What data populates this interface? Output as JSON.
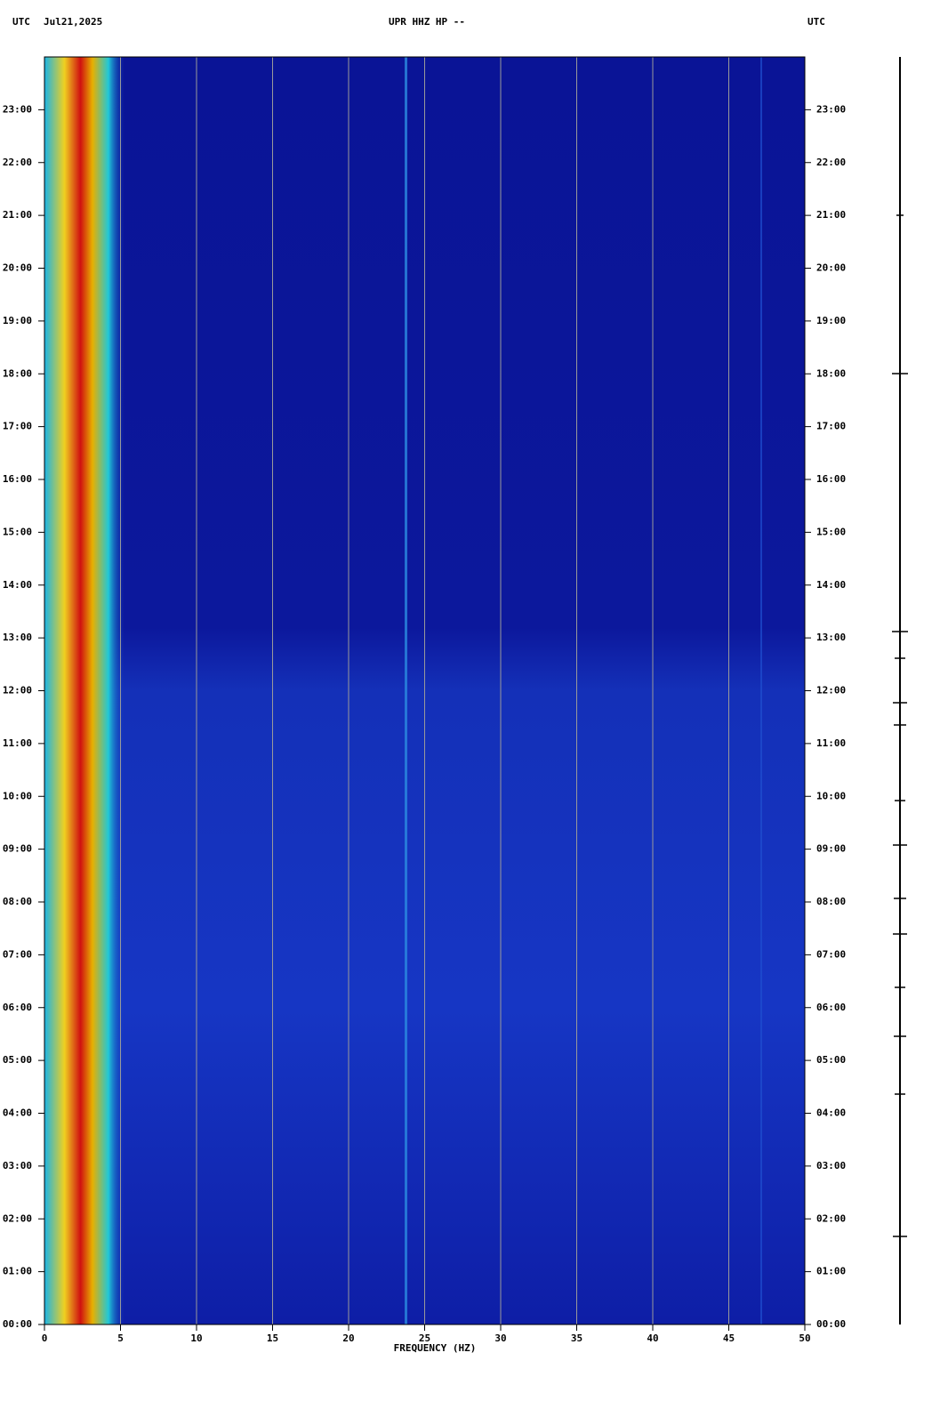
{
  "chart_data": {
    "type": "spectrogram",
    "title": "UPR HHZ HP --",
    "date": "Jul21,2025",
    "left_timezone": "UTC",
    "right_timezone": "UTC",
    "xlabel": "FREQUENCY (HZ)",
    "xlim": [
      0,
      50
    ],
    "xticks": [
      0,
      5,
      10,
      15,
      20,
      25,
      30,
      35,
      40,
      45,
      50
    ],
    "ylim": [
      0,
      24
    ],
    "yticks": [
      {
        "value": 0,
        "label": "00:00"
      },
      {
        "value": 1,
        "label": "01:00"
      },
      {
        "value": 2,
        "label": "02:00"
      },
      {
        "value": 3,
        "label": "03:00"
      },
      {
        "value": 4,
        "label": "04:00"
      },
      {
        "value": 5,
        "label": "05:00"
      },
      {
        "value": 6,
        "label": "06:00"
      },
      {
        "value": 7,
        "label": "07:00"
      },
      {
        "value": 8,
        "label": "08:00"
      },
      {
        "value": 9,
        "label": "09:00"
      },
      {
        "value": 10,
        "label": "10:00"
      },
      {
        "value": 11,
        "label": "11:00"
      },
      {
        "value": 12,
        "label": "12:00"
      },
      {
        "value": 13,
        "label": "13:00"
      },
      {
        "value": 14,
        "label": "14:00"
      },
      {
        "value": 15,
        "label": "15:00"
      },
      {
        "value": 16,
        "label": "16:00"
      },
      {
        "value": 17,
        "label": "17:00"
      },
      {
        "value": 18,
        "label": "18:00"
      },
      {
        "value": 19,
        "label": "19:00"
      },
      {
        "value": 20,
        "label": "20:00"
      },
      {
        "value": 21,
        "label": "21:00"
      },
      {
        "value": 22,
        "label": "22:00"
      },
      {
        "value": 23,
        "label": "23:00"
      }
    ],
    "grid": true
  }
}
